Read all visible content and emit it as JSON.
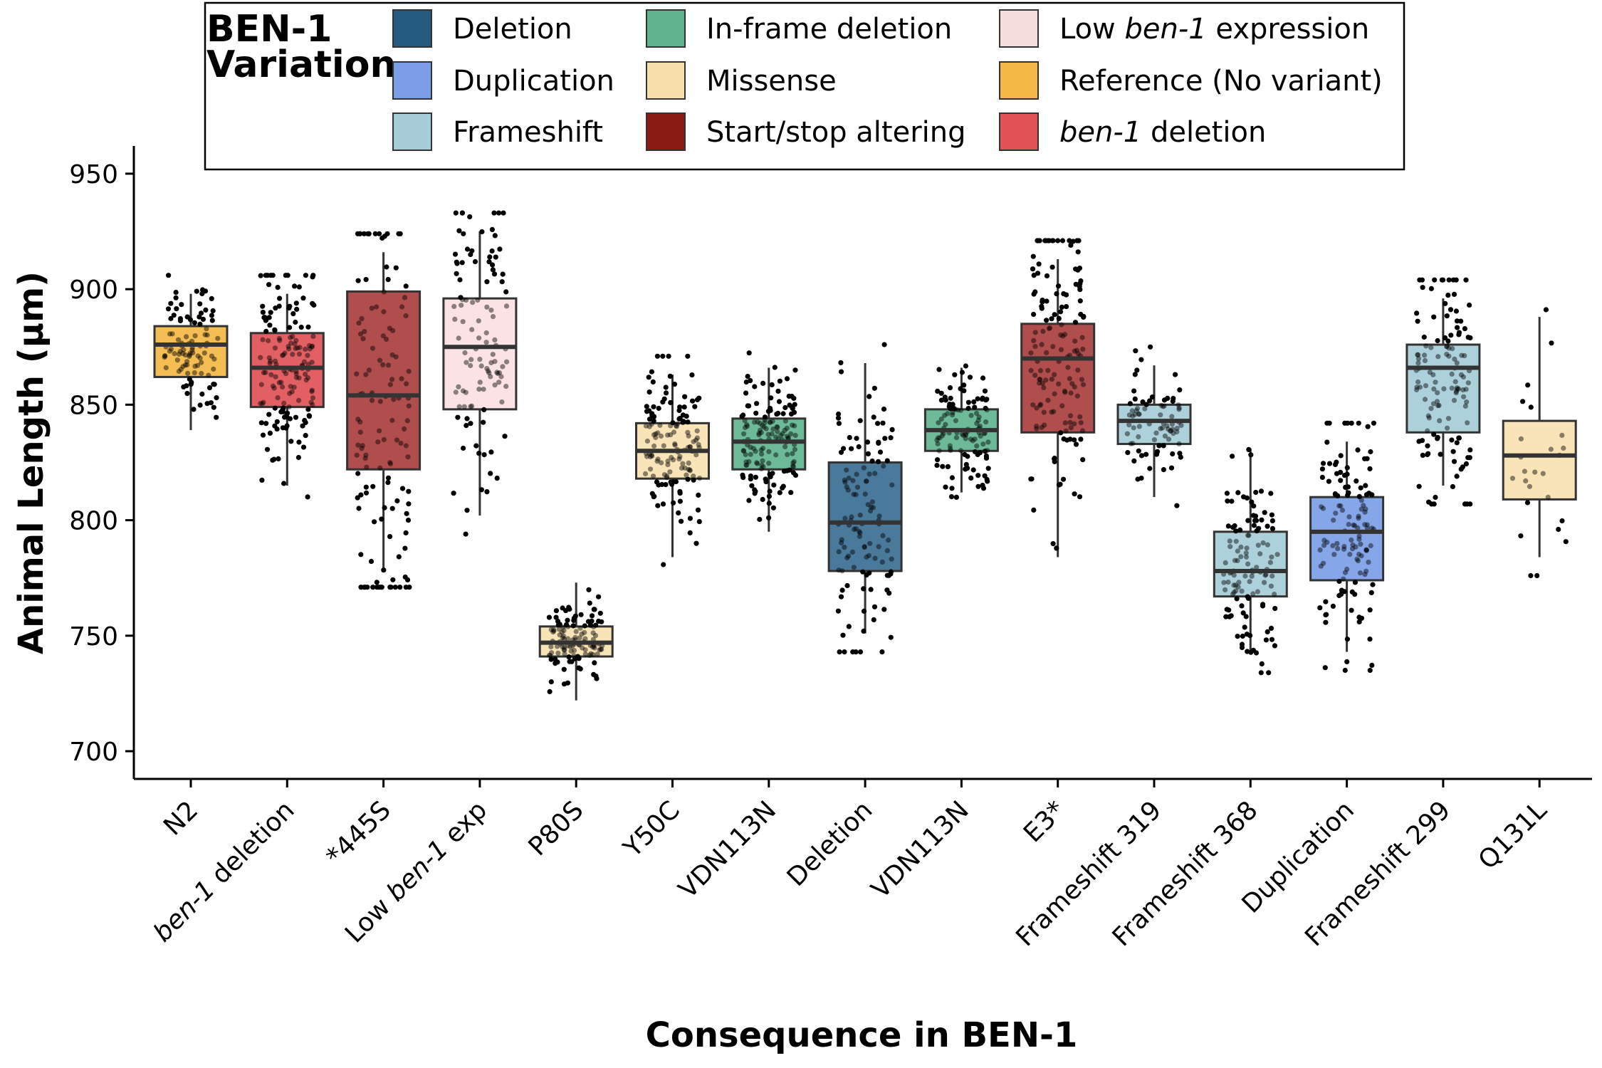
{
  "chart_data": {
    "type": "box",
    "xlabel": "Consequence in BEN-1",
    "ylabel": "Animal Length (µm)",
    "ylim": [
      688,
      962
    ],
    "yticks": [
      700,
      750,
      800,
      850,
      900,
      950
    ],
    "grid": false,
    "legend": {
      "title": [
        "BEN-1",
        "Variation"
      ],
      "placement": "top",
      "items": [
        {
          "label": "Deletion",
          "color": "#245b7e"
        },
        {
          "label": "Duplication",
          "color": "#7b9ee6"
        },
        {
          "label": "Frameshift",
          "color": "#a6cdd7"
        },
        {
          "label": "In-frame deletion",
          "color": "#5fb48e"
        },
        {
          "label": "Missense",
          "color": "#f7e0ac"
        },
        {
          "label": "Start/stop altering",
          "color": "#8b1a14"
        },
        {
          "label": "Low ben-1 expression",
          "color": "#f6dedf",
          "italic_word": "ben-1"
        },
        {
          "label": "Reference (No variant)",
          "color": "#f4b847"
        },
        {
          "label": "ben-1 deletion",
          "color": "#df5356",
          "italic_word": "ben-1"
        }
      ]
    },
    "categories": [
      {
        "label": "N2",
        "variation": "Reference (No variant)",
        "color": "#f4b847",
        "q1": 862,
        "median": 876,
        "q3": 884,
        "whisker_low": 839,
        "whisker_high": 898,
        "n": 100
      },
      {
        "label": "ben-1 deletion",
        "italic_word": "ben-1",
        "variation": "ben-1 deletion",
        "color": "#df5356",
        "q1": 849,
        "median": 866,
        "q3": 881,
        "whisker_low": 815,
        "whisker_high": 898,
        "n": 160
      },
      {
        "label": "*445S",
        "variation": "Start/stop altering",
        "color": "#a93e3e",
        "q1": 822,
        "median": 854,
        "q3": 899,
        "whisker_low": 779,
        "whisker_high": 916,
        "n": 130
      },
      {
        "label": "Low ben-1 exp",
        "italic_word": "ben-1",
        "variation": "Low ben-1 expression",
        "color": "#fbe1e3",
        "q1": 848,
        "median": 875,
        "q3": 896,
        "whisker_low": 802,
        "whisker_high": 925,
        "n": 110
      },
      {
        "label": "P80S",
        "variation": "Missense",
        "color": "#f7e2b0",
        "q1": 741,
        "median": 747,
        "q3": 754,
        "whisker_low": 722,
        "whisker_high": 773,
        "n": 120
      },
      {
        "label": "Y50C",
        "variation": "Missense",
        "color": "#f7e2b0",
        "q1": 818,
        "median": 830,
        "q3": 842,
        "whisker_low": 784,
        "whisker_high": 863,
        "n": 140
      },
      {
        "label": "VDN113N",
        "variation": "In-frame deletion",
        "color": "#5fb48e",
        "q1": 822,
        "median": 834,
        "q3": 844,
        "whisker_low": 795,
        "whisker_high": 866,
        "n": 150
      },
      {
        "label": "Deletion",
        "variation": "Deletion",
        "color": "#3a6e93",
        "q1": 778,
        "median": 799,
        "q3": 825,
        "whisker_low": 751,
        "whisker_high": 868,
        "n": 120
      },
      {
        "label": "VDN113N",
        "variation": "In-frame deletion",
        "color": "#5fb48e",
        "q1": 830,
        "median": 839,
        "q3": 848,
        "whisker_low": 812,
        "whisker_high": 866,
        "n": 120
      },
      {
        "label": "E3*",
        "variation": "Start/stop altering",
        "color": "#a93e3e",
        "q1": 838,
        "median": 870,
        "q3": 885,
        "whisker_low": 784,
        "whisker_high": 913,
        "n": 150
      },
      {
        "label": "Frameshift 319",
        "variation": "Frameshift",
        "color": "#a6cdd7",
        "q1": 833,
        "median": 843,
        "q3": 850,
        "whisker_low": 810,
        "whisker_high": 867,
        "n": 80
      },
      {
        "label": "Frameshift 368",
        "variation": "Frameshift",
        "color": "#a6cdd7",
        "q1": 767,
        "median": 778,
        "q3": 795,
        "whisker_low": 742,
        "whisker_high": 831,
        "n": 120
      },
      {
        "label": "Duplication",
        "variation": "Duplication",
        "color": "#7b9ee6",
        "q1": 774,
        "median": 795,
        "q3": 810,
        "whisker_low": 743,
        "whisker_high": 834,
        "n": 130
      },
      {
        "label": "Frameshift 299",
        "variation": "Frameshift",
        "color": "#a6cdd7",
        "q1": 838,
        "median": 866,
        "q3": 876,
        "whisker_low": 815,
        "whisker_high": 896,
        "n": 130
      },
      {
        "label": "Q131L",
        "variation": "Missense",
        "color": "#f7e2b0",
        "q1": 809,
        "median": 828,
        "q3": 843,
        "whisker_low": 784,
        "whisker_high": 888,
        "n": 25
      }
    ]
  }
}
